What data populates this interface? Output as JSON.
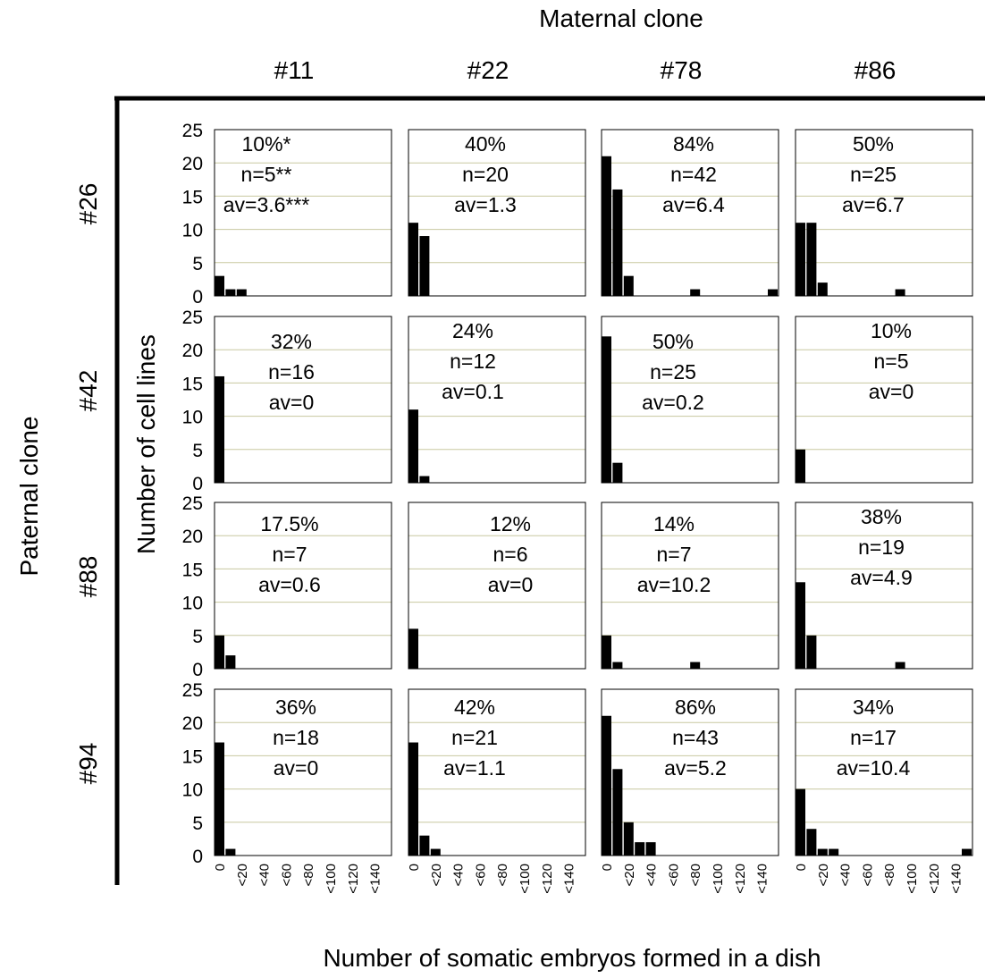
{
  "labels": {
    "maternal_title": "Maternal clone",
    "paternal_title": "Paternal clone",
    "y_axis_title": "Number of cell lines",
    "x_axis_title": "Number of somatic embryos formed in a dish"
  },
  "chart_data": {
    "type": "bar",
    "layout": "small-multiples",
    "columns": [
      "#11",
      "#22",
      "#78",
      "#86"
    ],
    "rows": [
      "#26",
      "#42",
      "#88",
      "#94"
    ],
    "categories": [
      "0",
      "<20",
      "<40",
      "<60",
      "<80",
      "<100",
      "<120",
      "<140"
    ],
    "xlabel": "Number of somatic embryos formed in a dish",
    "ylabel": "Number of cell lines",
    "ylim": [
      0,
      25
    ],
    "yticks": [
      "25",
      "20",
      "15",
      "10",
      "5",
      "0"
    ],
    "grid": true,
    "panels": [
      {
        "row": "#26",
        "column": "#11",
        "percent": "10%*",
        "n": "n=5**",
        "av": "av=3.6***",
        "values": [
          3,
          1,
          1,
          0,
          0,
          0,
          0,
          0,
          0,
          0,
          0,
          0,
          0,
          0,
          0,
          0
        ]
      },
      {
        "row": "#26",
        "column": "#22",
        "percent": "40%",
        "n": "n=20",
        "av": "av=1.3",
        "values": [
          11,
          9,
          0,
          0,
          0,
          0,
          0,
          0,
          0,
          0,
          0,
          0,
          0,
          0,
          0,
          0
        ]
      },
      {
        "row": "#26",
        "column": "#78",
        "percent": "84%",
        "n": "n=42",
        "av": "av=6.4",
        "values": [
          21,
          16,
          3,
          0,
          0,
          0,
          0,
          0,
          1,
          0,
          0,
          0,
          0,
          0,
          0,
          1
        ]
      },
      {
        "row": "#26",
        "column": "#86",
        "percent": "50%",
        "n": "n=25",
        "av": "av=6.7",
        "values": [
          11,
          11,
          2,
          0,
          0,
          0,
          0,
          0,
          0,
          1,
          0,
          0,
          0,
          0,
          0,
          0
        ]
      },
      {
        "row": "#42",
        "column": "#11",
        "percent": "32%",
        "n": "n=16",
        "av": "av=0",
        "values": [
          16,
          0,
          0,
          0,
          0,
          0,
          0,
          0,
          0,
          0,
          0,
          0,
          0,
          0,
          0,
          0
        ]
      },
      {
        "row": "#42",
        "column": "#22",
        "percent": "24%",
        "n": "n=12",
        "av": "av=0.1",
        "values": [
          11,
          1,
          0,
          0,
          0,
          0,
          0,
          0,
          0,
          0,
          0,
          0,
          0,
          0,
          0,
          0
        ]
      },
      {
        "row": "#42",
        "column": "#78",
        "percent": "50%",
        "n": "n=25",
        "av": "av=0.2",
        "values": [
          22,
          3,
          0,
          0,
          0,
          0,
          0,
          0,
          0,
          0,
          0,
          0,
          0,
          0,
          0,
          0
        ]
      },
      {
        "row": "#42",
        "column": "#86",
        "percent": "10%",
        "n": "n=5",
        "av": "av=0",
        "values": [
          5,
          0,
          0,
          0,
          0,
          0,
          0,
          0,
          0,
          0,
          0,
          0,
          0,
          0,
          0,
          0
        ]
      },
      {
        "row": "#88",
        "column": "#11",
        "percent": "17.5%",
        "n": "n=7",
        "av": "av=0.6",
        "values": [
          5,
          2,
          0,
          0,
          0,
          0,
          0,
          0,
          0,
          0,
          0,
          0,
          0,
          0,
          0,
          0
        ]
      },
      {
        "row": "#88",
        "column": "#22",
        "percent": "12%",
        "n": "n=6",
        "av": "av=0",
        "values": [
          6,
          0,
          0,
          0,
          0,
          0,
          0,
          0,
          0,
          0,
          0,
          0,
          0,
          0,
          0,
          0
        ]
      },
      {
        "row": "#88",
        "column": "#78",
        "percent": "14%",
        "n": "n=7",
        "av": "av=10.2",
        "values": [
          5,
          1,
          0,
          0,
          0,
          0,
          0,
          0,
          1,
          0,
          0,
          0,
          0,
          0,
          0,
          0
        ]
      },
      {
        "row": "#88",
        "column": "#86",
        "percent": "38%",
        "n": "n=19",
        "av": "av=4.9",
        "values": [
          13,
          5,
          0,
          0,
          0,
          0,
          0,
          0,
          0,
          1,
          0,
          0,
          0,
          0,
          0,
          0
        ]
      },
      {
        "row": "#94",
        "column": "#11",
        "percent": "36%",
        "n": "n=18",
        "av": "av=0",
        "values": [
          17,
          1,
          0,
          0,
          0,
          0,
          0,
          0,
          0,
          0,
          0,
          0,
          0,
          0,
          0,
          0
        ]
      },
      {
        "row": "#94",
        "column": "#22",
        "percent": "42%",
        "n": "n=21",
        "av": "av=1.1",
        "values": [
          17,
          3,
          1,
          0,
          0,
          0,
          0,
          0,
          0,
          0,
          0,
          0,
          0,
          0,
          0,
          0
        ]
      },
      {
        "row": "#94",
        "column": "#78",
        "percent": "86%",
        "n": "n=43",
        "av": "av=5.2",
        "values": [
          21,
          13,
          5,
          2,
          2,
          0,
          0,
          0,
          0,
          0,
          0,
          0,
          0,
          0,
          0,
          0
        ]
      },
      {
        "row": "#94",
        "column": "#86",
        "percent": "34%",
        "n": "n=17",
        "av": "av=10.4",
        "values": [
          10,
          4,
          1,
          1,
          0,
          0,
          0,
          0,
          0,
          0,
          0,
          0,
          0,
          0,
          0,
          1
        ]
      }
    ]
  }
}
